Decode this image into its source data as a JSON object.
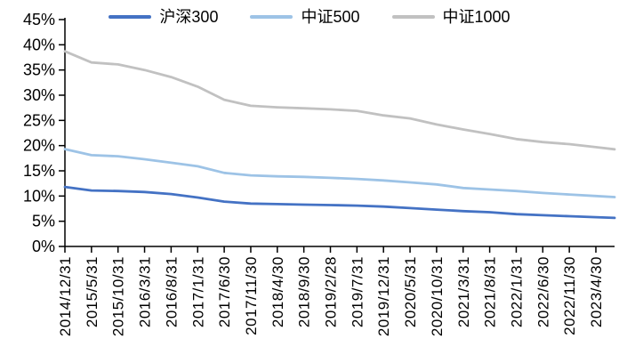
{
  "chart_data": {
    "type": "line",
    "title": "",
    "xlabel": "",
    "ylabel": "",
    "ylim": [
      0,
      45
    ],
    "y_tick_step": 5,
    "y_ticks": [
      "0%",
      "5%",
      "10%",
      "15%",
      "20%",
      "25%",
      "30%",
      "35%",
      "40%",
      "45%"
    ],
    "grid": false,
    "legend_position": "top",
    "x_label_rotation": -90,
    "axis_color": "#000000",
    "text_color": "#000000",
    "categories": [
      "2014/12/31",
      "2015/5/31",
      "2015/10/31",
      "2016/3/31",
      "2016/8/31",
      "2017/1/31",
      "2017/6/30",
      "2017/11/30",
      "2018/4/30",
      "2018/9/30",
      "2019/2/28",
      "2019/7/31",
      "2019/12/31",
      "2020/5/31",
      "2020/10/31",
      "2021/3/31",
      "2021/8/31",
      "2022/1/31",
      "2022/6/30",
      "2022/11/30",
      "2023/4/30"
    ],
    "series": [
      {
        "name": "沪深300",
        "color": "#4472C4",
        "values": [
          11.8,
          11.1,
          11.0,
          10.8,
          10.4,
          9.7,
          8.9,
          8.5,
          8.4,
          8.3,
          8.2,
          8.1,
          7.9,
          7.6,
          7.3,
          7.0,
          6.8,
          6.4,
          6.2,
          6.0,
          5.8
        ]
      },
      {
        "name": "中证500",
        "color": "#9DC3E6",
        "values": [
          19.3,
          18.1,
          17.9,
          17.3,
          16.6,
          15.9,
          14.6,
          14.1,
          13.9,
          13.8,
          13.6,
          13.4,
          13.1,
          12.7,
          12.3,
          11.6,
          11.3,
          11.0,
          10.6,
          10.3,
          10.0
        ]
      },
      {
        "name": "中证1000",
        "color": "#C1C1C1",
        "values": [
          38.7,
          36.5,
          36.1,
          35.0,
          33.6,
          31.7,
          29.1,
          27.9,
          27.6,
          27.4,
          27.2,
          26.9,
          26.0,
          25.4,
          24.2,
          23.2,
          22.3,
          21.3,
          20.7,
          20.3,
          19.7
        ]
      }
    ]
  }
}
